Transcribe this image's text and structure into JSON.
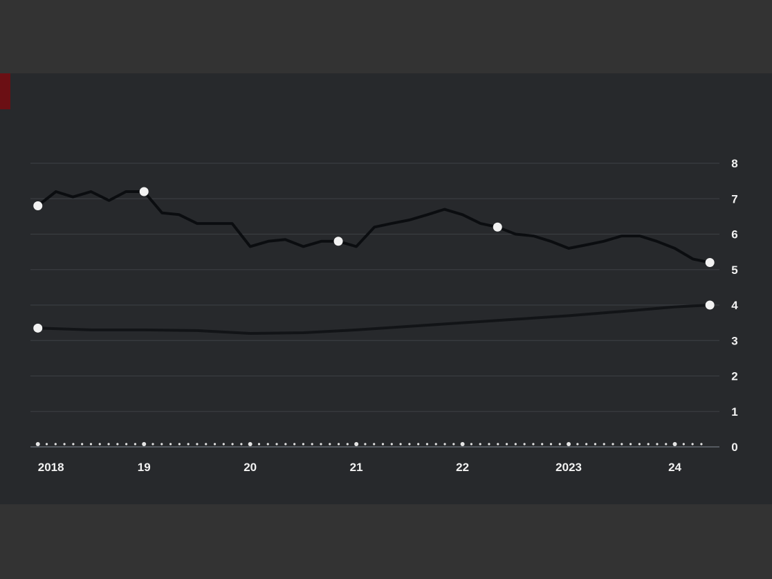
{
  "card": {
    "title": "",
    "subtitle": "",
    "source": ""
  },
  "chart_data": {
    "type": "line",
    "title": "",
    "subtitle": "",
    "xlabel": "",
    "ylabel": "",
    "ylim": [
      0,
      8
    ],
    "y_ticks": [
      0,
      1,
      2,
      3,
      4,
      5,
      6,
      7,
      8
    ],
    "y_axis_side": "right",
    "x_ticks": [
      "2018",
      "19",
      "20",
      "21",
      "22",
      "2023",
      "24"
    ],
    "grid": true,
    "legend": "none",
    "series": [
      {
        "name": "",
        "color": "#0b0d10",
        "x": [
          2018.0,
          2018.17,
          2018.33,
          2018.5,
          2018.67,
          2018.83,
          2019.0,
          2019.17,
          2019.33,
          2019.5,
          2019.67,
          2019.83,
          2020.0,
          2020.17,
          2020.33,
          2020.5,
          2020.67,
          2020.83,
          2021.0,
          2021.17,
          2021.33,
          2021.5,
          2021.67,
          2021.83,
          2022.0,
          2022.17,
          2022.33,
          2022.5,
          2022.67,
          2022.83,
          2023.0,
          2023.17,
          2023.33,
          2023.5,
          2023.67,
          2023.83,
          2024.0,
          2024.17,
          2024.33
        ],
        "values": [
          6.8,
          7.2,
          7.05,
          7.2,
          6.95,
          7.2,
          7.2,
          6.6,
          6.55,
          6.3,
          6.3,
          6.3,
          5.65,
          5.8,
          5.85,
          5.65,
          5.8,
          5.8,
          5.65,
          6.2,
          6.3,
          6.4,
          6.55,
          6.7,
          6.55,
          6.3,
          6.2,
          6.0,
          5.95,
          5.8,
          5.6,
          5.7,
          5.8,
          5.95,
          5.95,
          5.8,
          5.6,
          5.3,
          5.2
        ],
        "label": "",
        "markers": [
          0,
          6,
          17,
          26,
          38
        ]
      },
      {
        "name": "",
        "color": "#121417",
        "x": [
          2018.0,
          2018.5,
          2019.0,
          2019.5,
          2020.0,
          2020.5,
          2021.0,
          2021.5,
          2022.0,
          2022.5,
          2023.0,
          2023.5,
          2024.0,
          2024.33
        ],
        "values": [
          3.35,
          3.3,
          3.3,
          3.28,
          3.2,
          3.22,
          3.3,
          3.4,
          3.5,
          3.6,
          3.7,
          3.82,
          3.95,
          4.0
        ],
        "label": "",
        "markers": [
          0,
          13
        ]
      }
    ]
  }
}
